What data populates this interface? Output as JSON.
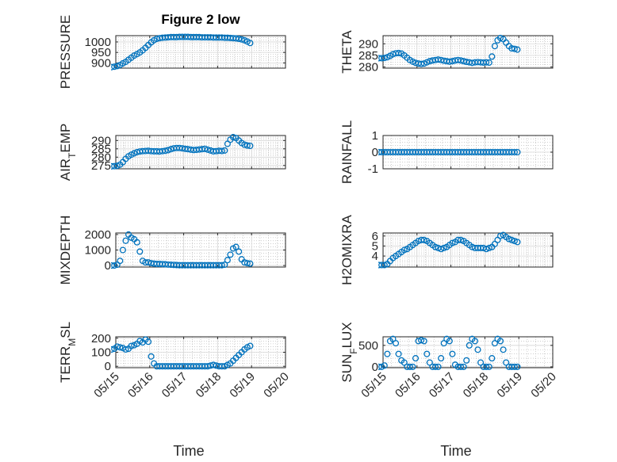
{
  "figure": {
    "title": "Figure 2 low"
  },
  "colors": {
    "marker": "#0072BD",
    "axis": "#262626",
    "grid": "#b0b0b0",
    "background": "#ffffff"
  },
  "chart_data": [
    {
      "type": "scatter",
      "id": "pressure",
      "title": "Figure 2 low",
      "ylabel_parts": [
        [
          "PRESSURE",
          false
        ]
      ],
      "xlim": [
        "05/15",
        "05/20"
      ],
      "ylim": [
        875,
        1030
      ],
      "yticks": [
        900,
        950,
        1000
      ],
      "xticks": [
        "05/15",
        "05/16",
        "05/17",
        "05/18",
        "05/19",
        "05/20"
      ],
      "grid": true,
      "marker": "open-circle",
      "x": [
        "05/14 21:00",
        "05/14 23:00",
        "05/15 01:00",
        "05/15 03:00",
        "05/15 05:00",
        "05/15 07:00",
        "05/15 09:00",
        "05/15 11:00",
        "05/15 13:00",
        "05/15 15:00",
        "05/15 17:00",
        "05/15 19:00",
        "05/15 21:00",
        "05/15 23:00",
        "05/16 01:00",
        "05/16 03:00",
        "05/16 05:00",
        "05/16 07:00",
        "05/16 09:00",
        "05/16 11:00",
        "05/16 13:00",
        "05/16 15:00",
        "05/16 17:00",
        "05/16 19:00",
        "05/16 21:00",
        "05/16 23:00",
        "05/17 01:00",
        "05/17 03:00",
        "05/17 05:00",
        "05/17 07:00",
        "05/17 09:00",
        "05/17 11:00",
        "05/17 13:00",
        "05/17 15:00",
        "05/17 17:00",
        "05/17 19:00",
        "05/17 21:00",
        "05/17 23:00",
        "05/18 01:00",
        "05/18 03:00",
        "05/18 05:00",
        "05/18 07:00",
        "05/18 09:00",
        "05/18 11:00",
        "05/18 13:00",
        "05/18 15:00",
        "05/18 17:00",
        "05/18 19:00",
        "05/18 21:00",
        "05/18 23:00"
      ],
      "y": [
        880,
        882,
        885,
        890,
        898,
        905,
        915,
        925,
        935,
        942,
        950,
        960,
        972,
        985,
        998,
        1008,
        1015,
        1018,
        1020,
        1021,
        1022,
        1023,
        1023,
        1023,
        1024,
        1024,
        1024,
        1024,
        1023,
        1023,
        1023,
        1023,
        1022,
        1022,
        1022,
        1022,
        1021,
        1021,
        1021,
        1021,
        1020,
        1020,
        1019,
        1018,
        1017,
        1015,
        1012,
        1008,
        1002,
        995
      ]
    },
    {
      "type": "scatter",
      "id": "theta",
      "ylabel_parts": [
        [
          "THETA",
          false
        ]
      ],
      "xlim": [
        "05/15",
        "05/20"
      ],
      "ylim": [
        279.5,
        293.5
      ],
      "yticks": [
        280,
        285,
        290
      ],
      "xticks": [
        "05/15",
        "05/16",
        "05/17",
        "05/18",
        "05/19",
        "05/20"
      ],
      "grid": true,
      "marker": "open-circle",
      "x": [
        "05/14 21:00",
        "05/14 23:00",
        "05/15 01:00",
        "05/15 03:00",
        "05/15 05:00",
        "05/15 07:00",
        "05/15 09:00",
        "05/15 11:00",
        "05/15 13:00",
        "05/15 15:00",
        "05/15 17:00",
        "05/15 19:00",
        "05/15 21:00",
        "05/15 23:00",
        "05/16 01:00",
        "05/16 03:00",
        "05/16 05:00",
        "05/16 07:00",
        "05/16 09:00",
        "05/16 11:00",
        "05/16 13:00",
        "05/16 15:00",
        "05/16 17:00",
        "05/16 19:00",
        "05/16 21:00",
        "05/16 23:00",
        "05/17 01:00",
        "05/17 03:00",
        "05/17 05:00",
        "05/17 07:00",
        "05/17 09:00",
        "05/17 11:00",
        "05/17 13:00",
        "05/17 15:00",
        "05/17 17:00",
        "05/17 19:00",
        "05/17 21:00",
        "05/17 23:00",
        "05/18 01:00",
        "05/18 03:00",
        "05/18 05:00",
        "05/18 07:00",
        "05/18 09:00",
        "05/18 11:00",
        "05/18 13:00",
        "05/18 15:00",
        "05/18 17:00",
        "05/18 19:00",
        "05/18 21:00",
        "05/18 23:00"
      ],
      "y": [
        283.8,
        283.8,
        283.9,
        284.2,
        284.8,
        285.5,
        285.9,
        286.0,
        285.8,
        285.0,
        284.0,
        283.0,
        282.3,
        281.8,
        281.5,
        281.3,
        281.5,
        282.0,
        282.5,
        282.8,
        283.0,
        283.2,
        283.0,
        282.7,
        282.5,
        282.3,
        282.5,
        282.8,
        283.0,
        282.8,
        282.5,
        282.2,
        282.0,
        281.8,
        282.0,
        282.1,
        282.0,
        281.9,
        282.0,
        281.9,
        284.5,
        289.0,
        291.5,
        292.5,
        292.0,
        290.5,
        289.0,
        288.0,
        287.8,
        287.5
      ]
    },
    {
      "type": "scatter",
      "id": "air_temp",
      "ylabel_parts": [
        [
          "AIR",
          false
        ],
        [
          "T",
          true
        ],
        [
          "EMP",
          false
        ]
      ],
      "xlim": [
        "05/15",
        "05/20"
      ],
      "ylim": [
        273,
        293
      ],
      "yticks": [
        275,
        280,
        285,
        290
      ],
      "xticks": [
        "05/15",
        "05/16",
        "05/17",
        "05/18",
        "05/19",
        "05/20"
      ],
      "grid": true,
      "marker": "open-circle",
      "x": [
        "05/14 21:00",
        "05/14 23:00",
        "05/15 01:00",
        "05/15 03:00",
        "05/15 05:00",
        "05/15 07:00",
        "05/15 09:00",
        "05/15 11:00",
        "05/15 13:00",
        "05/15 15:00",
        "05/15 17:00",
        "05/15 19:00",
        "05/15 21:00",
        "05/15 23:00",
        "05/16 01:00",
        "05/16 03:00",
        "05/16 05:00",
        "05/16 07:00",
        "05/16 09:00",
        "05/16 11:00",
        "05/16 13:00",
        "05/16 15:00",
        "05/16 17:00",
        "05/16 19:00",
        "05/16 21:00",
        "05/16 23:00",
        "05/17 01:00",
        "05/17 03:00",
        "05/17 05:00",
        "05/17 07:00",
        "05/17 09:00",
        "05/17 11:00",
        "05/17 13:00",
        "05/17 15:00",
        "05/17 17:00",
        "05/17 19:00",
        "05/17 21:00",
        "05/17 23:00",
        "05/18 01:00",
        "05/18 03:00",
        "05/18 05:00",
        "05/18 07:00",
        "05/18 09:00",
        "05/18 11:00",
        "05/18 13:00",
        "05/18 15:00",
        "05/18 17:00",
        "05/18 19:00",
        "05/18 21:00",
        "05/18 23:00"
      ],
      "y": [
        274.5,
        274.6,
        274.8,
        275.5,
        277.0,
        279.0,
        280.5,
        281.5,
        282.3,
        283.0,
        283.4,
        283.6,
        283.7,
        283.8,
        283.6,
        283.5,
        283.5,
        283.4,
        283.6,
        283.8,
        284.2,
        284.8,
        285.3,
        285.5,
        285.5,
        285.3,
        285.0,
        284.8,
        284.5,
        284.3,
        284.4,
        284.6,
        284.8,
        285.0,
        284.5,
        284.0,
        283.5,
        283.6,
        283.8,
        283.7,
        284.0,
        288.0,
        290.5,
        292.0,
        291.5,
        290.0,
        288.5,
        287.5,
        287.0,
        286.8
      ]
    },
    {
      "type": "scatter",
      "id": "rainfall",
      "ylabel_parts": [
        [
          "RAINFALL",
          false
        ]
      ],
      "xlim": [
        "05/15",
        "05/20"
      ],
      "ylim": [
        -1,
        1
      ],
      "yticks": [
        -1,
        0,
        1
      ],
      "xticks": [
        "05/15",
        "05/16",
        "05/17",
        "05/18",
        "05/19",
        "05/20"
      ],
      "grid": true,
      "marker": "open-circle",
      "x": [
        "05/14 21:00",
        "05/14 23:00",
        "05/15 01:00",
        "05/15 03:00",
        "05/15 05:00",
        "05/15 07:00",
        "05/15 09:00",
        "05/15 11:00",
        "05/15 13:00",
        "05/15 15:00",
        "05/15 17:00",
        "05/15 19:00",
        "05/15 21:00",
        "05/15 23:00",
        "05/16 01:00",
        "05/16 03:00",
        "05/16 05:00",
        "05/16 07:00",
        "05/16 09:00",
        "05/16 11:00",
        "05/16 13:00",
        "05/16 15:00",
        "05/16 17:00",
        "05/16 19:00",
        "05/16 21:00",
        "05/16 23:00",
        "05/17 01:00",
        "05/17 03:00",
        "05/17 05:00",
        "05/17 07:00",
        "05/17 09:00",
        "05/17 11:00",
        "05/17 13:00",
        "05/17 15:00",
        "05/17 17:00",
        "05/17 19:00",
        "05/17 21:00",
        "05/17 23:00",
        "05/18 01:00",
        "05/18 03:00",
        "05/18 05:00",
        "05/18 07:00",
        "05/18 09:00",
        "05/18 11:00",
        "05/18 13:00",
        "05/18 15:00",
        "05/18 17:00",
        "05/18 19:00",
        "05/18 21:00",
        "05/18 23:00"
      ],
      "y": [
        0,
        0,
        0,
        0,
        0,
        0,
        0,
        0,
        0,
        0,
        0,
        0,
        0,
        0,
        0,
        0,
        0,
        0,
        0,
        0,
        0,
        0,
        0,
        0,
        0,
        0,
        0,
        0,
        0,
        0,
        0,
        0,
        0,
        0,
        0,
        0,
        0,
        0,
        0,
        0,
        0,
        0,
        0,
        0,
        0,
        0,
        0,
        0,
        0,
        0
      ]
    },
    {
      "type": "scatter",
      "id": "mixdepth",
      "ylabel_parts": [
        [
          "MIXDEPTH",
          false
        ]
      ],
      "xlim": [
        "05/15",
        "05/20"
      ],
      "ylim": [
        -100,
        2100
      ],
      "yticks": [
        0,
        1000,
        2000
      ],
      "xticks": [
        "05/15",
        "05/16",
        "05/17",
        "05/18",
        "05/19",
        "05/20"
      ],
      "grid": true,
      "marker": "open-circle",
      "x": [
        "05/14 21:00",
        "05/14 23:00",
        "05/15 01:00",
        "05/15 03:00",
        "05/15 05:00",
        "05/15 07:00",
        "05/15 09:00",
        "05/15 11:00",
        "05/15 13:00",
        "05/15 15:00",
        "05/15 17:00",
        "05/15 19:00",
        "05/15 21:00",
        "05/15 23:00",
        "05/16 01:00",
        "05/16 03:00",
        "05/16 05:00",
        "05/16 07:00",
        "05/16 09:00",
        "05/16 11:00",
        "05/16 13:00",
        "05/16 15:00",
        "05/16 17:00",
        "05/16 19:00",
        "05/16 21:00",
        "05/16 23:00",
        "05/17 01:00",
        "05/17 03:00",
        "05/17 05:00",
        "05/17 07:00",
        "05/17 09:00",
        "05/17 11:00",
        "05/17 13:00",
        "05/17 15:00",
        "05/17 17:00",
        "05/17 19:00",
        "05/17 21:00",
        "05/17 23:00",
        "05/18 01:00",
        "05/18 03:00",
        "05/18 05:00",
        "05/18 07:00",
        "05/18 09:00",
        "05/18 11:00",
        "05/18 13:00",
        "05/18 15:00",
        "05/18 17:00",
        "05/18 19:00",
        "05/18 21:00",
        "05/18 23:00"
      ],
      "y": [
        0,
        0,
        50,
        300,
        1000,
        1600,
        2000,
        1800,
        1700,
        1500,
        900,
        300,
        200,
        200,
        150,
        120,
        100,
        100,
        90,
        80,
        60,
        50,
        40,
        30,
        20,
        20,
        20,
        20,
        20,
        20,
        20,
        20,
        20,
        20,
        20,
        20,
        20,
        20,
        20,
        20,
        50,
        350,
        700,
        1100,
        1200,
        900,
        400,
        200,
        150,
        120
      ]
    },
    {
      "type": "scatter",
      "id": "h2omixra",
      "ylabel_parts": [
        [
          "H2OMIXRA",
          false
        ]
      ],
      "xlim": [
        "05/15",
        "05/20"
      ],
      "ylim": [
        2.9,
        6.3
      ],
      "yticks": [
        4,
        5,
        6
      ],
      "xticks": [
        "05/15",
        "05/16",
        "05/17",
        "05/18",
        "05/19",
        "05/20"
      ],
      "grid": true,
      "marker": "open-circle",
      "x": [
        "05/14 21:00",
        "05/14 23:00",
        "05/15 01:00",
        "05/15 03:00",
        "05/15 05:00",
        "05/15 07:00",
        "05/15 09:00",
        "05/15 11:00",
        "05/15 13:00",
        "05/15 15:00",
        "05/15 17:00",
        "05/15 19:00",
        "05/15 21:00",
        "05/15 23:00",
        "05/16 01:00",
        "05/16 03:00",
        "05/16 05:00",
        "05/16 07:00",
        "05/16 09:00",
        "05/16 11:00",
        "05/16 13:00",
        "05/16 15:00",
        "05/16 17:00",
        "05/16 19:00",
        "05/16 21:00",
        "05/16 23:00",
        "05/17 01:00",
        "05/17 03:00",
        "05/17 05:00",
        "05/17 07:00",
        "05/17 09:00",
        "05/17 11:00",
        "05/17 13:00",
        "05/17 15:00",
        "05/17 17:00",
        "05/17 19:00",
        "05/17 21:00",
        "05/17 23:00",
        "05/18 01:00",
        "05/18 03:00",
        "05/18 05:00",
        "05/18 07:00",
        "05/18 09:00",
        "05/18 11:00",
        "05/18 13:00",
        "05/18 15:00",
        "05/18 17:00",
        "05/18 19:00",
        "05/18 21:00",
        "05/18 23:00"
      ],
      "y": [
        3.1,
        3.1,
        3.1,
        3.2,
        3.5,
        3.8,
        4.0,
        4.2,
        4.4,
        4.6,
        4.7,
        4.9,
        5.1,
        5.3,
        5.5,
        5.6,
        5.6,
        5.5,
        5.3,
        5.1,
        4.9,
        4.8,
        4.7,
        4.8,
        4.9,
        5.1,
        5.3,
        5.4,
        5.6,
        5.6,
        5.5,
        5.3,
        5.1,
        4.9,
        4.8,
        4.8,
        4.8,
        4.8,
        4.7,
        4.8,
        4.9,
        5.2,
        5.6,
        6.0,
        6.1,
        5.9,
        5.7,
        5.6,
        5.5,
        5.4
      ]
    },
    {
      "type": "scatter",
      "id": "terr_msl",
      "ylabel_parts": [
        [
          "TERR",
          false
        ],
        [
          "M",
          true
        ],
        [
          "SL",
          false
        ]
      ],
      "xlim": [
        "05/15",
        "05/20"
      ],
      "ylim": [
        -10,
        210
      ],
      "yticks": [
        0,
        100,
        200
      ],
      "xticks": [
        "05/15",
        "05/16",
        "05/17",
        "05/18",
        "05/19",
        "05/20"
      ],
      "grid": true,
      "marker": "open-circle",
      "x": [
        "05/14 21:00",
        "05/14 23:00",
        "05/15 01:00",
        "05/15 03:00",
        "05/15 05:00",
        "05/15 07:00",
        "05/15 09:00",
        "05/15 11:00",
        "05/15 13:00",
        "05/15 15:00",
        "05/15 17:00",
        "05/15 19:00",
        "05/15 21:00",
        "05/15 23:00",
        "05/16 01:00",
        "05/16 03:00",
        "05/16 05:00",
        "05/16 07:00",
        "05/16 09:00",
        "05/16 11:00",
        "05/16 13:00",
        "05/16 15:00",
        "05/16 17:00",
        "05/16 19:00",
        "05/16 21:00",
        "05/16 23:00",
        "05/17 01:00",
        "05/17 03:00",
        "05/17 05:00",
        "05/17 07:00",
        "05/17 09:00",
        "05/17 11:00",
        "05/17 13:00",
        "05/17 15:00",
        "05/17 17:00",
        "05/17 19:00",
        "05/17 21:00",
        "05/17 23:00",
        "05/18 01:00",
        "05/18 03:00",
        "05/18 05:00",
        "05/18 07:00",
        "05/18 09:00",
        "05/18 11:00",
        "05/18 13:00",
        "05/18 15:00",
        "05/18 17:00",
        "05/18 19:00",
        "05/18 21:00",
        "05/18 23:00"
      ],
      "y": [
        120,
        125,
        140,
        135,
        130,
        120,
        125,
        145,
        150,
        160,
        180,
        170,
        190,
        175,
        70,
        20,
        0,
        0,
        0,
        0,
        0,
        0,
        0,
        0,
        0,
        0,
        0,
        0,
        0,
        0,
        0,
        0,
        0,
        0,
        0,
        5,
        10,
        5,
        0,
        0,
        0,
        10,
        20,
        40,
        60,
        80,
        100,
        120,
        135,
        145
      ]
    },
    {
      "type": "scatter",
      "id": "sun_flux",
      "ylabel_parts": [
        [
          "SUN",
          false
        ],
        [
          "F",
          true
        ],
        [
          "LUX",
          false
        ]
      ],
      "xlim": [
        "05/15",
        "05/20"
      ],
      "ylim": [
        -20,
        700
      ],
      "yticks": [
        0,
        500
      ],
      "xticks": [
        "05/15",
        "05/16",
        "05/17",
        "05/18",
        "05/19",
        "05/20"
      ],
      "grid": true,
      "marker": "open-circle",
      "x": [
        "05/14 21:00",
        "05/14 23:00",
        "05/15 01:00",
        "05/15 03:00",
        "05/15 05:00",
        "05/15 07:00",
        "05/15 09:00",
        "05/15 11:00",
        "05/15 13:00",
        "05/15 15:00",
        "05/15 17:00",
        "05/15 19:00",
        "05/15 21:00",
        "05/15 23:00",
        "05/16 01:00",
        "05/16 03:00",
        "05/16 05:00",
        "05/16 07:00",
        "05/16 09:00",
        "05/16 11:00",
        "05/16 13:00",
        "05/16 15:00",
        "05/16 17:00",
        "05/16 19:00",
        "05/16 21:00",
        "05/16 23:00",
        "05/17 01:00",
        "05/17 03:00",
        "05/17 05:00",
        "05/17 07:00",
        "05/17 09:00",
        "05/17 11:00",
        "05/17 13:00",
        "05/17 15:00",
        "05/17 17:00",
        "05/17 19:00",
        "05/17 21:00",
        "05/17 23:00",
        "05/18 01:00",
        "05/18 03:00",
        "05/18 05:00",
        "05/18 07:00",
        "05/18 09:00",
        "05/18 11:00",
        "05/18 13:00",
        "05/18 15:00",
        "05/18 17:00",
        "05/18 19:00",
        "05/18 21:00",
        "05/18 23:00"
      ],
      "y": [
        0,
        0,
        30,
        300,
        600,
        650,
        550,
        300,
        150,
        100,
        0,
        0,
        0,
        200,
        600,
        620,
        600,
        300,
        100,
        0,
        0,
        0,
        200,
        550,
        650,
        600,
        300,
        50,
        0,
        0,
        0,
        150,
        500,
        650,
        600,
        400,
        100,
        0,
        0,
        0,
        200,
        550,
        650,
        600,
        400,
        100,
        0,
        0,
        0,
        0
      ]
    }
  ],
  "xaxis_label": "Time"
}
